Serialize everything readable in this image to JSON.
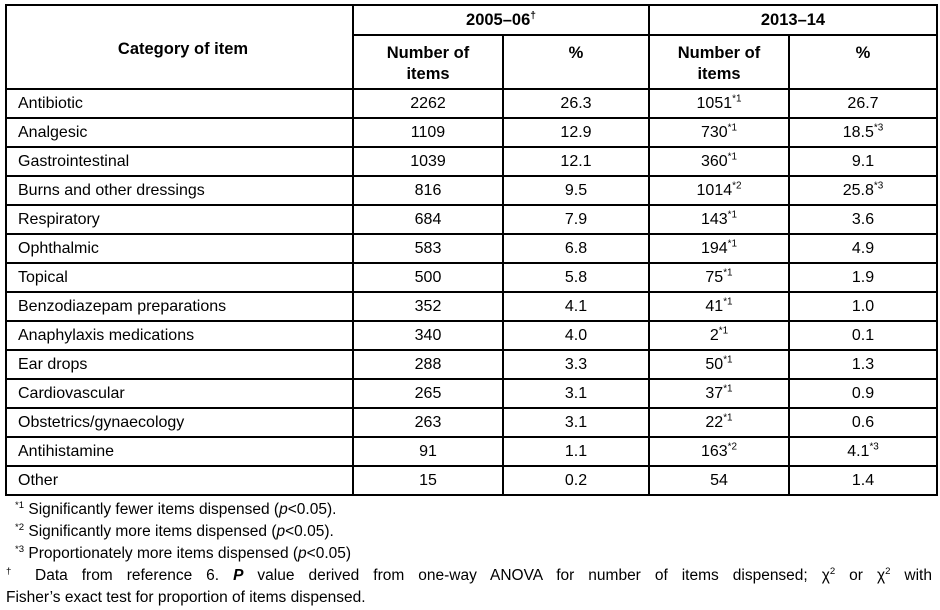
{
  "table": {
    "columns": {
      "category_header": "Category of item",
      "groups": [
        {
          "label": "2005–06",
          "sup": "†"
        },
        {
          "label": "2013–14",
          "sup": ""
        }
      ],
      "subheaders": [
        "Number of items",
        "%",
        "Number of items",
        "%"
      ]
    },
    "rows": [
      {
        "category": "Antibiotic",
        "n_2005": "2262",
        "pct_2005": "26.3",
        "n_2013": "1051",
        "n_2013_sup": "*1",
        "pct_2013": "26.7",
        "pct_2013_sup": ""
      },
      {
        "category": "Analgesic",
        "n_2005": "1109",
        "pct_2005": "12.9",
        "n_2013": "730",
        "n_2013_sup": "*1",
        "pct_2013": "18.5",
        "pct_2013_sup": "*3"
      },
      {
        "category": "Gastrointestinal",
        "n_2005": "1039",
        "pct_2005": "12.1",
        "n_2013": "360",
        "n_2013_sup": "*1",
        "pct_2013": "9.1",
        "pct_2013_sup": ""
      },
      {
        "category": "Burns and other dressings",
        "n_2005": "816",
        "pct_2005": "9.5",
        "n_2013": "1014",
        "n_2013_sup": "*2",
        "pct_2013": "25.8",
        "pct_2013_sup": "*3"
      },
      {
        "category": "Respiratory",
        "n_2005": "684",
        "pct_2005": "7.9",
        "n_2013": "143",
        "n_2013_sup": "*1",
        "pct_2013": "3.6",
        "pct_2013_sup": ""
      },
      {
        "category": "Ophthalmic",
        "n_2005": "583",
        "pct_2005": "6.8",
        "n_2013": "194",
        "n_2013_sup": "*1",
        "pct_2013": "4.9",
        "pct_2013_sup": ""
      },
      {
        "category": "Topical",
        "n_2005": "500",
        "pct_2005": "5.8",
        "n_2013": "75",
        "n_2013_sup": "*1",
        "pct_2013": "1.9",
        "pct_2013_sup": ""
      },
      {
        "category": "Benzodiazepam preparations",
        "n_2005": "352",
        "pct_2005": "4.1",
        "n_2013": "41",
        "n_2013_sup": "*1",
        "pct_2013": "1.0",
        "pct_2013_sup": ""
      },
      {
        "category": "Anaphylaxis medications",
        "n_2005": "340",
        "pct_2005": "4.0",
        "n_2013": "2",
        "n_2013_sup": "*1",
        "pct_2013": "0.1",
        "pct_2013_sup": ""
      },
      {
        "category": "Ear drops",
        "n_2005": "288",
        "pct_2005": "3.3",
        "n_2013": "50",
        "n_2013_sup": "*1",
        "pct_2013": "1.3",
        "pct_2013_sup": ""
      },
      {
        "category": "Cardiovascular",
        "n_2005": "265",
        "pct_2005": "3.1",
        "n_2013": "37",
        "n_2013_sup": "*1",
        "pct_2013": "0.9",
        "pct_2013_sup": ""
      },
      {
        "category": "Obstetrics/gynaecology",
        "n_2005": "263",
        "pct_2005": "3.1",
        "n_2013": "22",
        "n_2013_sup": "*1",
        "pct_2013": "0.6",
        "pct_2013_sup": ""
      },
      {
        "category": "Antihistamine",
        "n_2005": "91",
        "pct_2005": "1.1",
        "n_2013": "163",
        "n_2013_sup": "*2",
        "pct_2013": "4.1",
        "pct_2013_sup": "*3"
      },
      {
        "category": "Other",
        "n_2005": "15",
        "pct_2005": "0.2",
        "n_2013": "54",
        "n_2013_sup": "",
        "pct_2013": "1.4",
        "pct_2013_sup": ""
      }
    ]
  },
  "footnotes": [
    {
      "justify": false,
      "indent": true,
      "segments": [
        {
          "t": "*1",
          "s": "sup"
        },
        {
          "t": " Significantly fewer items dispensed (",
          "s": "p"
        },
        {
          "t": "p",
          "s": "i"
        },
        {
          "t": "<0.05).",
          "s": "p"
        }
      ]
    },
    {
      "justify": false,
      "indent": true,
      "segments": [
        {
          "t": "*2",
          "s": "sup"
        },
        {
          "t": " Significantly more items dispensed (",
          "s": "p"
        },
        {
          "t": "p",
          "s": "i"
        },
        {
          "t": "<0.05).",
          "s": "p"
        }
      ]
    },
    {
      "justify": false,
      "indent": true,
      "segments": [
        {
          "t": "*3",
          "s": "sup"
        },
        {
          "t": " Proportionately more items dispensed (",
          "s": "p"
        },
        {
          "t": "p",
          "s": "i"
        },
        {
          "t": "<0.05)",
          "s": "p"
        }
      ]
    },
    {
      "justify": true,
      "indent": false,
      "segments": [
        {
          "t": "†",
          "s": "sup"
        },
        {
          "t": " Data from reference 6. ",
          "s": "p"
        },
        {
          "t": "P",
          "s": "bi"
        },
        {
          "t": " value derived from one-way ANOVA for number of items dispensed; ",
          "s": "p"
        },
        {
          "t": "χ",
          "s": "p"
        },
        {
          "t": "2",
          "s": "sup"
        },
        {
          "t": " or ",
          "s": "p"
        },
        {
          "t": "χ",
          "s": "p"
        },
        {
          "t": "2",
          "s": "sup"
        },
        {
          "t": " with",
          "s": "p"
        }
      ]
    },
    {
      "justify": false,
      "indent": false,
      "segments": [
        {
          "t": "Fisher’s exact test for proportion of items dispensed.",
          "s": "p"
        }
      ]
    }
  ]
}
